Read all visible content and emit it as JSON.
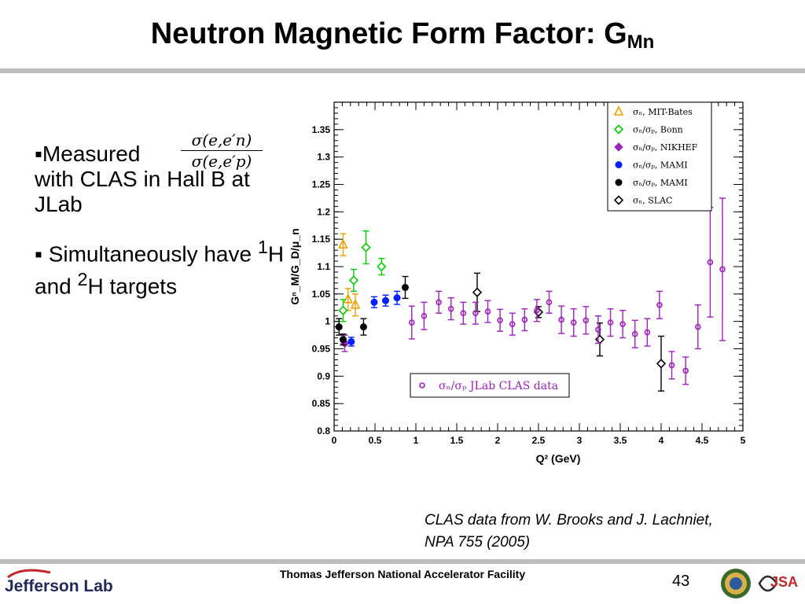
{
  "slide": {
    "title_main": "Neutron Magnetic Form Factor: G",
    "title_sub": "Mn",
    "bullet1_text": "▪Measured",
    "bullet1_cont": "with CLAS in Hall B at JLab",
    "bullet2_a": "▪ Simultaneously have ",
    "bullet2_sup1": "1",
    "bullet2_b": "H and ",
    "bullet2_sup2": "2",
    "bullet2_c": "H targets",
    "frac_num": "σ(e,e′n)",
    "frac_den": "σ(e,e′p)",
    "citation": "CLAS data from W. Brooks and J. Lachniet, NPA 755 (2005)",
    "footer": "Thomas Jefferson National Accelerator Facility",
    "page_number": "43",
    "logo_left": "Jefferson Lab",
    "logo_right": "JSA"
  },
  "colors": {
    "mit_bates": "#f0a000",
    "bonn": "#00d000",
    "nikhef": "#a020c0",
    "mami_blue": "#0020ff",
    "mami_black": "#000000",
    "slac": "#000000",
    "clas": "#a020c0"
  },
  "chart_data": {
    "type": "scatter",
    "xlabel": "Q² (GeV)",
    "ylabel": "Gⁿ_M/G_D/μ_n",
    "xlim": [
      0,
      5
    ],
    "ylim": [
      0.8,
      1.4
    ],
    "xticks": [
      "0",
      "0.5",
      "1",
      "1.5",
      "2",
      "2.5",
      "3",
      "3.5",
      "4",
      "4.5",
      "5"
    ],
    "yticks": [
      "0.8",
      "0.85",
      "0.9",
      "0.95",
      "1",
      "1.05",
      "1.1",
      "1.15",
      "1.2",
      "1.25",
      "1.3",
      "1.35"
    ],
    "legend_position": "top-right",
    "series": [
      {
        "name": "σₙ, MIT-Bates",
        "marker": "triangle-open",
        "color": "#f0a000",
        "points": [
          [
            0.11,
            1.14,
            0.02
          ],
          [
            0.17,
            1.04,
            0.02
          ],
          [
            0.26,
            1.03,
            0.02
          ]
        ]
      },
      {
        "name": "σₙ/σₚ, Bonn",
        "marker": "diamond-open",
        "color": "#00d000",
        "points": [
          [
            0.11,
            1.02,
            0.02
          ],
          [
            0.24,
            1.075,
            0.02
          ],
          [
            0.39,
            1.135,
            0.03
          ],
          [
            0.58,
            1.1,
            0.015
          ]
        ]
      },
      {
        "name": "σₙ/σₚ, NIKHEF",
        "marker": "diamond-filled",
        "color": "#a020c0",
        "points": [
          [
            0.13,
            0.96,
            0.015
          ]
        ]
      },
      {
        "name": "σₙ/σₚ, MAMI",
        "marker": "circle-filled",
        "color": "#0020ff",
        "points": [
          [
            0.21,
            0.963,
            0.008
          ],
          [
            0.49,
            1.035,
            0.01
          ],
          [
            0.63,
            1.038,
            0.01
          ],
          [
            0.77,
            1.043,
            0.012
          ]
        ]
      },
      {
        "name": "σₙ/σₚ, MAMI",
        "marker": "circle-filled",
        "color": "#000000",
        "points": [
          [
            0.06,
            0.99,
            0.015
          ],
          [
            0.11,
            0.967,
            0.01
          ],
          [
            0.36,
            0.99,
            0.015
          ],
          [
            0.87,
            1.062,
            0.02
          ]
        ]
      },
      {
        "name": "σₙ, SLAC",
        "marker": "diamond-open",
        "color": "#000000",
        "points": [
          [
            1.75,
            1.053,
            0.035
          ],
          [
            2.5,
            1.017,
            0.01
          ],
          [
            3.25,
            0.967,
            0.03
          ],
          [
            4.0,
            0.923,
            0.05
          ]
        ]
      },
      {
        "name": "σₙ/σₚ JLab CLAS data",
        "marker": "circle-open",
        "color": "#a020c0",
        "points": [
          [
            0.95,
            0.998,
            0.03
          ],
          [
            1.1,
            1.01,
            0.025
          ],
          [
            1.28,
            1.035,
            0.02
          ],
          [
            1.43,
            1.023,
            0.02
          ],
          [
            1.58,
            1.015,
            0.02
          ],
          [
            1.73,
            1.015,
            0.02
          ],
          [
            1.88,
            1.018,
            0.02
          ],
          [
            2.03,
            1.002,
            0.02
          ],
          [
            2.18,
            0.995,
            0.02
          ],
          [
            2.33,
            1.003,
            0.02
          ],
          [
            2.48,
            1.02,
            0.02
          ],
          [
            2.63,
            1.035,
            0.02
          ],
          [
            2.78,
            1.003,
            0.025
          ],
          [
            2.93,
            0.998,
            0.025
          ],
          [
            3.08,
            1.002,
            0.025
          ],
          [
            3.23,
            0.985,
            0.025
          ],
          [
            3.38,
            0.998,
            0.025
          ],
          [
            3.53,
            0.995,
            0.025
          ],
          [
            3.68,
            0.977,
            0.025
          ],
          [
            3.83,
            0.98,
            0.025
          ],
          [
            3.98,
            1.03,
            0.025
          ],
          [
            4.13,
            0.92,
            0.025
          ],
          [
            4.3,
            0.91,
            0.025
          ],
          [
            4.45,
            0.99,
            0.04
          ],
          [
            4.6,
            1.108,
            0.1
          ],
          [
            4.75,
            1.095,
            0.13
          ]
        ]
      }
    ]
  }
}
